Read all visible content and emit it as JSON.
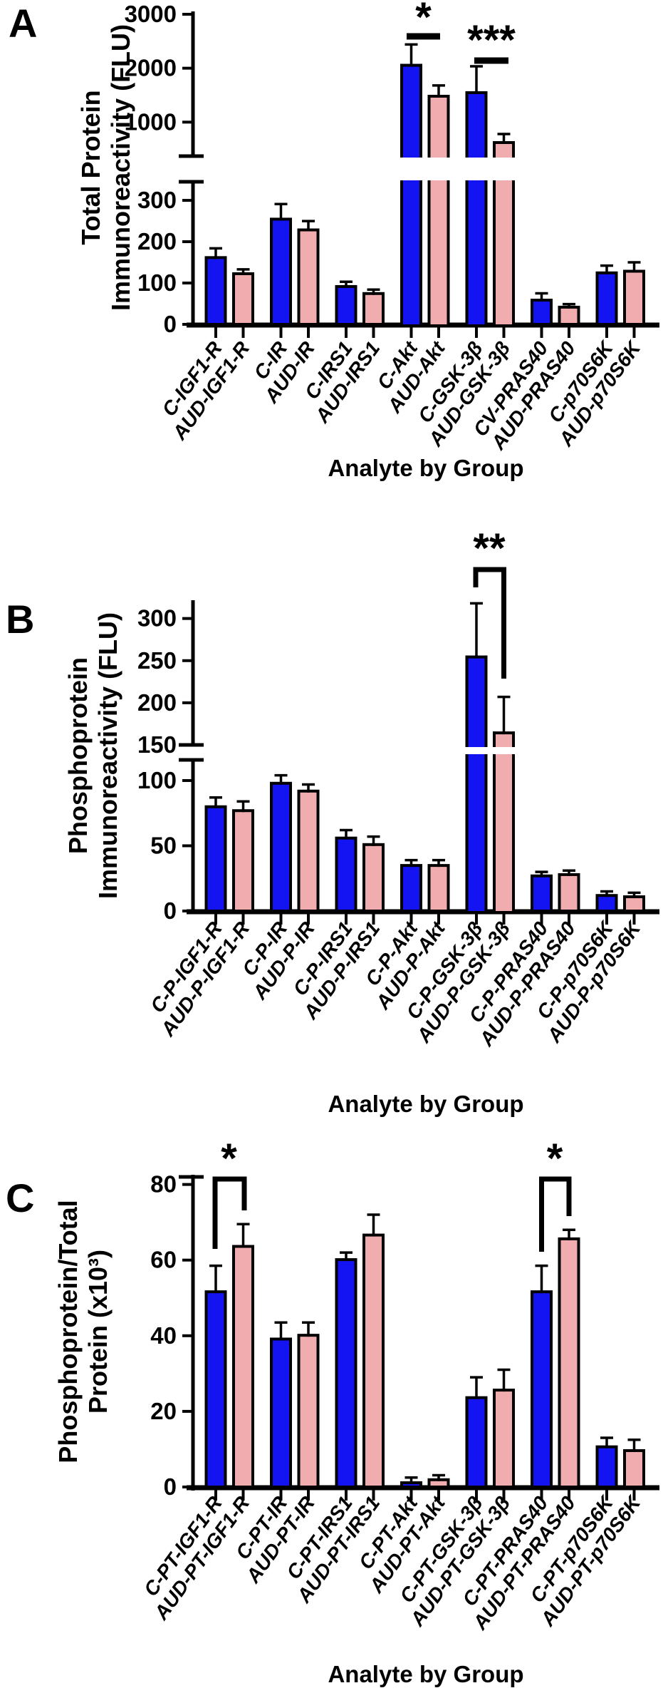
{
  "figure": {
    "background": "#ffffff",
    "bar_outline_color": "#000000",
    "group_colors": {
      "control": "#1414F2",
      "aud": "#F0ACAE"
    },
    "groups": [
      "C (Control)",
      "AUD"
    ]
  },
  "chart_data": [
    {
      "type": "bar",
      "panel": "A",
      "ylabel": "Total Protein Immunoreactivity (FLU)",
      "ylabel_lines": [
        "Total  Protein",
        "Immunoreactivity (FLU)"
      ],
      "xlabel": "Analyte by Group",
      "y_axis_break": true,
      "axis_segments": [
        {
          "range": [
            0,
            345
          ],
          "ticks": [
            0,
            100,
            200,
            300
          ]
        },
        {
          "range": [
            370,
            3000
          ],
          "ticks": [
            1000,
            2000,
            3000
          ]
        }
      ],
      "categories": [
        "C-IGF1-R",
        "AUD-IGF1-R",
        "C-IR",
        "AUD-IR",
        "C-IRS1",
        "AUD-IRS1",
        "C-Akt",
        "AUD-Akt",
        "C-GSK-3β",
        "AUD-GSK-3β",
        "CV-PRAS40",
        "AUD-PRAS40",
        "C-p70S6K",
        "AUD-p70S6K"
      ],
      "values": [
        165,
        126,
        258,
        232,
        95,
        78,
        2080,
        1507,
        1573,
        648,
        62,
        45,
        128,
        132
      ],
      "errors": [
        19,
        7,
        33,
        18,
        8,
        6,
        360,
        173,
        463,
        132,
        13,
        4,
        14,
        18
      ],
      "significance": [
        {
          "label": "*",
          "marker": "line",
          "over": [
            "C-Akt",
            "AUD-Akt"
          ]
        },
        {
          "label": "***",
          "marker": "line",
          "over": [
            "C-GSK-3β",
            "AUD-GSK-3β"
          ]
        }
      ]
    },
    {
      "type": "bar",
      "panel": "B",
      "ylabel": "Phosphoprotein Immunoreactivity (FLU)",
      "ylabel_lines": [
        "Phosphoprotein",
        "Immunoreactivity (FLU)"
      ],
      "xlabel": "Analyte by Group",
      "y_axis_break": true,
      "axis_segments": [
        {
          "range": [
            0,
            115
          ],
          "ticks": [
            0,
            50,
            100
          ]
        },
        {
          "range": [
            150,
            320
          ],
          "ticks": [
            150,
            200,
            250,
            300
          ]
        }
      ],
      "categories": [
        "C-P-IGF1-R",
        "AUD-P-IGF1-R",
        "C-P-IR",
        "AUD-P-IR",
        "C-P-IRS1",
        "AUD-P-IRS1",
        "C-P-Akt",
        "AUD-P-Akt",
        "C-P-GSK-3β",
        "AUD-P-GSK-3β",
        "C-P-PRAS40",
        "AUD-P-PRAS40",
        "C-P-p70S6K",
        "AUD-P-p70S6K"
      ],
      "values": [
        81,
        78,
        99,
        93,
        57,
        52,
        36,
        36,
        256,
        166,
        28,
        29,
        13,
        12
      ],
      "errors": [
        6,
        6,
        5,
        4,
        5,
        5,
        3,
        3,
        62,
        41,
        2,
        2,
        2,
        2
      ],
      "significance": [
        {
          "label": "**",
          "marker": "bracket",
          "over": [
            "C-P-GSK-3β",
            "AUD-P-GSK-3β"
          ]
        }
      ]
    },
    {
      "type": "bar",
      "panel": "C",
      "ylabel": "Phosphoprotein/Total Protein (x10³)",
      "ylabel_lines": [
        "Phosphoprotein/Total",
        "Protein (x10³)"
      ],
      "xlabel": "Analyte by Group",
      "y_axis_break": false,
      "axis_segments": [
        {
          "range": [
            0,
            82
          ],
          "ticks": [
            0,
            20,
            40,
            60,
            80
          ]
        }
      ],
      "categories": [
        "C-PT-IGF1-R",
        "AUD-PT-IGF1-R",
        "C-PT-IR",
        "AUD-PT-IR",
        "C-PT-IRS1",
        "AUD-PT-IRS1",
        "C-PT-Akt",
        "AUD-PT-Akt",
        "C-PT-GSK-3β",
        "AUD-PT-GSK-3β",
        "C-PT-PRAS40",
        "AUD-PT-PRAS40",
        "C-PT-p70S6K",
        "AUD-PT-p70S6K"
      ],
      "values": [
        52,
        64,
        39.5,
        40.5,
        60.5,
        67,
        1.5,
        2.3,
        24,
        26,
        52,
        66,
        11,
        10
      ],
      "errors": [
        6.5,
        5.5,
        4,
        3,
        1.5,
        5,
        1,
        0.8,
        5,
        5,
        6.5,
        2,
        2,
        2.5
      ],
      "significance": [
        {
          "label": "*",
          "marker": "bracket",
          "over": [
            "C-PT-IGF1-R",
            "AUD-PT-IGF1-R"
          ]
        },
        {
          "label": "*",
          "marker": "bracket",
          "over": [
            "C-PT-PRAS40",
            "AUD-PT-PRAS40"
          ]
        }
      ]
    }
  ]
}
